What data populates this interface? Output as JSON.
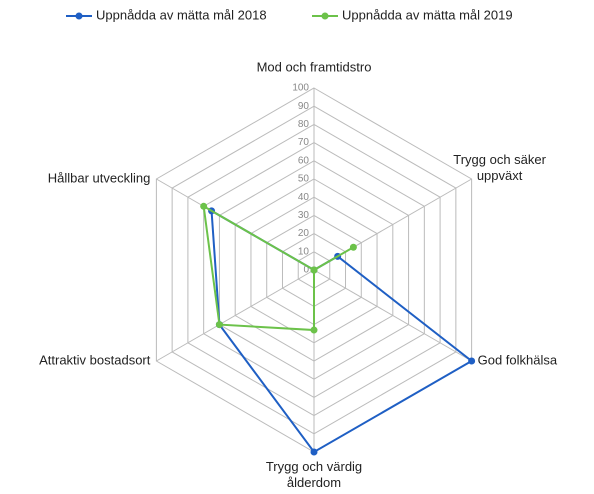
{
  "chart_data": {
    "type": "radar",
    "categories": [
      "Mod och framtidstro",
      "Trygg och säker uppväxt",
      "God folkhälsa",
      "Trygg och värdig ålderdom",
      "Attraktiv bostadsort",
      "Hållbar utveckling"
    ],
    "series": [
      {
        "name": "Uppnådda av mätta mål 2018",
        "color": "#1f5fc4",
        "values": [
          0,
          15,
          100,
          100,
          60,
          65
        ]
      },
      {
        "name": "Uppnådda av mätta mål 2019",
        "color": "#6cc24a",
        "values": [
          0,
          25,
          0,
          33,
          60,
          70
        ]
      }
    ],
    "ylim": [
      0,
      100
    ],
    "yticks": [
      0,
      10,
      20,
      30,
      40,
      50,
      60,
      70,
      80,
      90,
      100
    ],
    "grid": true,
    "legend": "top"
  }
}
